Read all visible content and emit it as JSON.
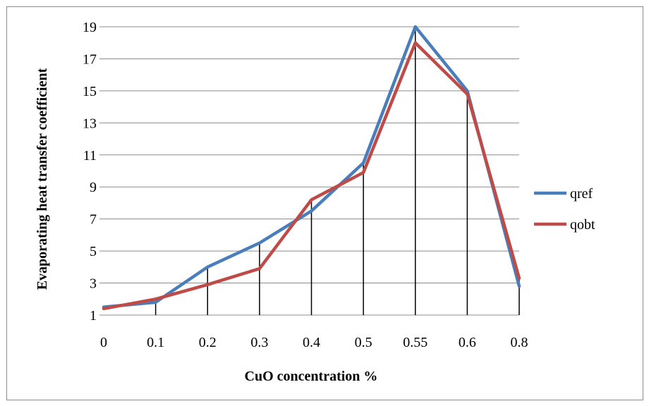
{
  "chart_data": {
    "type": "line",
    "title": "",
    "xlabel": "CuO concentration %",
    "ylabel": "Evaporating heat transfer coefficient",
    "categories": [
      "0",
      "0.1",
      "0.2",
      "0.3",
      "0.4",
      "0.5",
      "0.55",
      "0.6",
      "0.8"
    ],
    "ylim": [
      1,
      19
    ],
    "yticks": [
      "1",
      "3",
      "5",
      "7",
      "9",
      "11",
      "13",
      "15",
      "17",
      "19"
    ],
    "grid": "horizontal",
    "legend_position": "right",
    "drop_lines": true,
    "series": [
      {
        "name": "qref",
        "color": "#4a7ebb",
        "values": [
          1.5,
          1.8,
          4.0,
          5.5,
          7.5,
          10.5,
          19.0,
          15.0,
          2.8
        ]
      },
      {
        "name": "qobt",
        "color": "#be4b48",
        "values": [
          1.4,
          2.0,
          2.9,
          3.9,
          8.2,
          9.9,
          18.0,
          14.8,
          3.3
        ]
      }
    ]
  }
}
